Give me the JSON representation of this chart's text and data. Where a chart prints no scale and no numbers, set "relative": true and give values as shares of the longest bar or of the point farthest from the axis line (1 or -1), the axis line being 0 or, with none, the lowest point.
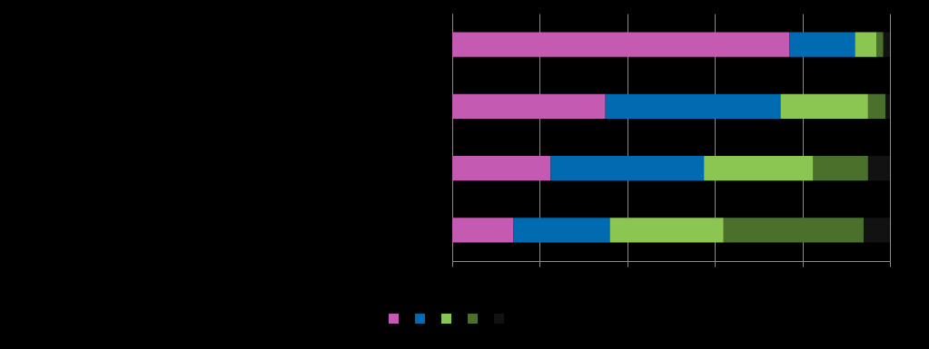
{
  "chart_data": {
    "type": "bar",
    "orientation": "horizontal",
    "stacked": true,
    "relative": true,
    "categories": [
      null,
      null,
      null,
      null
    ],
    "series": [
      {
        "color": "#c55ab3",
        "values": [
          0.77,
          0.35,
          0.225,
          0.14
        ]
      },
      {
        "color": "#006bb0",
        "values": [
          0.15,
          0.4,
          0.35,
          0.22
        ]
      },
      {
        "color": "#8bc653",
        "values": [
          0.05,
          0.2,
          0.25,
          0.26
        ]
      },
      {
        "color": "#4b702c",
        "values": [
          0.015,
          0.04,
          0.125,
          0.32
        ]
      },
      {
        "color": "#121212",
        "values": [
          0.015,
          0.01,
          0.05,
          0.06
        ]
      }
    ],
    "grid": true
  }
}
